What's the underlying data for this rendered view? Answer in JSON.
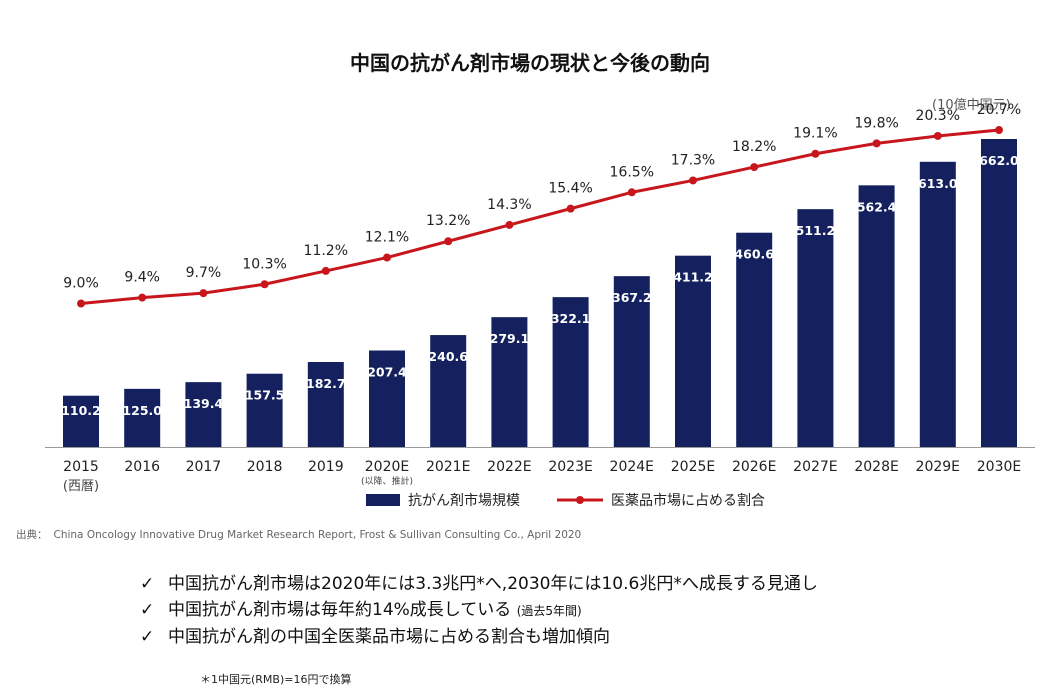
{
  "title": "中国の抗がん剤市場の現状と今後の動向",
  "unit": "(10億中国元)",
  "chart_data": {
    "type": "bar",
    "categories": [
      "2015",
      "2016",
      "2017",
      "2018",
      "2019",
      "2020E",
      "2021E",
      "2022E",
      "2023E",
      "2024E",
      "2025E",
      "2026E",
      "2027E",
      "2028E",
      "2029E",
      "2030E"
    ],
    "category_notes": {
      "2015": "(西暦)",
      "2020E": "(以降、推計)"
    },
    "series": [
      {
        "name": "抗がん剤市場規模",
        "type": "bar",
        "color": "#14215e",
        "values": [
          110.2,
          125.0,
          139.4,
          157.5,
          182.7,
          207.4,
          240.6,
          279.1,
          322.1,
          367.2,
          411.2,
          460.6,
          511.2,
          562.4,
          613.0,
          662.0
        ],
        "labels": [
          "110.2",
          "125.0",
          "139.4",
          "157.5",
          "182.7",
          "207.4",
          "240.6",
          "279.1",
          "322.1",
          "367.2",
          "411.2",
          "460.6",
          "511.2",
          "562.4",
          "613.0",
          "662.0"
        ]
      },
      {
        "name": "医薬品市場に占める割合",
        "type": "line",
        "color": "#c8161d",
        "values": [
          9.0,
          9.4,
          9.7,
          10.3,
          11.2,
          12.1,
          13.2,
          14.3,
          15.4,
          16.5,
          17.3,
          18.2,
          19.1,
          19.8,
          20.3,
          20.7
        ],
        "labels": [
          "9.0%",
          "9.4%",
          "9.7%",
          "10.3%",
          "11.2%",
          "12.1%",
          "13.2%",
          "14.3%",
          "15.4%",
          "16.5%",
          "17.3%",
          "18.2%",
          "19.1%",
          "19.8%",
          "20.3%",
          "20.7%"
        ]
      }
    ],
    "ylim": [
      0,
      662
    ],
    "y2lim": [
      0,
      21
    ],
    "grid": false,
    "legend": "bottom"
  },
  "source": {
    "prefix": "出典：",
    "text": "China Oncology Innovative Drug Market Research Report,  Frost & Sullivan Consulting Co., April 2020"
  },
  "bullets": [
    {
      "check": "✓",
      "text": "中国抗がん剤市場は2020年には3.3兆円*へ,2030年には10.6兆円*へ成長する見通し",
      "note": ""
    },
    {
      "check": "✓",
      "text": "中国抗がん剤市場は毎年約14%成長している",
      "note": "(過去5年間)"
    },
    {
      "check": "✓",
      "text": "中国抗がん剤の中国全医薬品市場に占める割合も増加傾向",
      "note": ""
    }
  ],
  "footnote": "＊1中国元(RMB)=16円で換算"
}
